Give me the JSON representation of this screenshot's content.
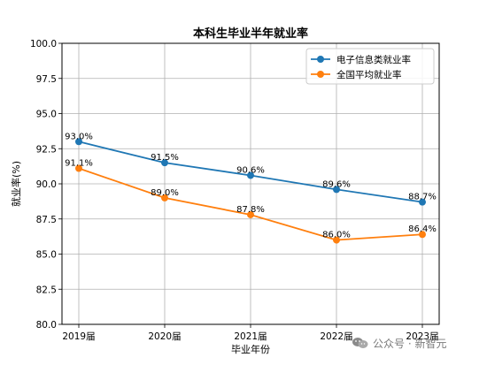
{
  "chart_data": {
    "type": "line",
    "title": "本科生毕业半年就业率",
    "xlabel": "毕业年份",
    "ylabel": "就业率(%)",
    "categories": [
      "2019届",
      "2020届",
      "2021届",
      "2022届",
      "2023届"
    ],
    "ylim": [
      80.0,
      100.0
    ],
    "yticks": [
      "80.0",
      "82.5",
      "85.0",
      "87.5",
      "90.0",
      "92.5",
      "95.0",
      "97.5",
      "100.0"
    ],
    "grid": true,
    "legend_position": "top-right",
    "series": [
      {
        "name": "电子信息类就业率",
        "color": "#1f77b4",
        "values": [
          93.0,
          91.5,
          90.6,
          89.6,
          88.7
        ],
        "labels": [
          "93.0%",
          "91.5%",
          "90.6%",
          "89.6%",
          "88.7%"
        ]
      },
      {
        "name": "全国平均就业率",
        "color": "#ff7f0e",
        "values": [
          91.1,
          89.0,
          87.8,
          86.0,
          86.4
        ],
        "labels": [
          "91.1%",
          "89.0%",
          "87.8%",
          "86.0%",
          "86.4%"
        ]
      }
    ]
  },
  "watermark": {
    "text": "公众号 · 新智元",
    "icon": "wechat-icon"
  }
}
